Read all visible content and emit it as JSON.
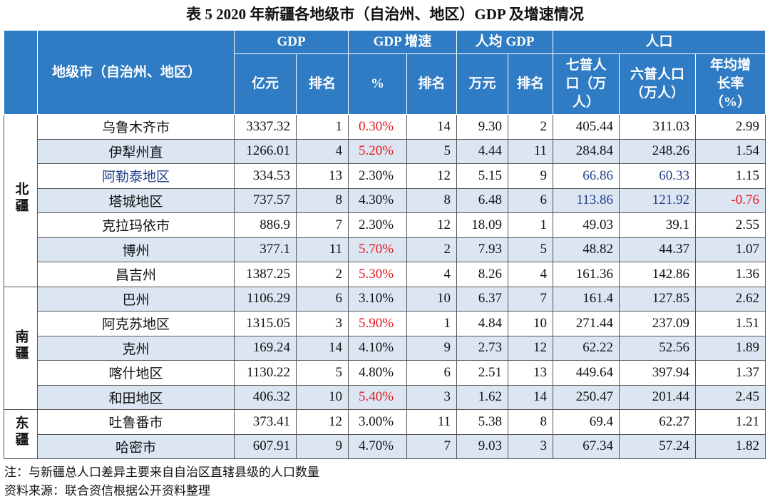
{
  "title": "表 5 2020 年新疆各地级市（自治州、地区）GDP 及增速情况",
  "header": {
    "name": "地级市（自治州、地区）",
    "groups": [
      "GDP",
      "GDP 增速",
      "人均 GDP",
      "人口"
    ],
    "units": [
      "亿元",
      "排名",
      "%",
      "排名",
      "万元",
      "排名",
      "七普人口（万人）",
      "六普人口（万人）",
      "年均增长率（%）"
    ]
  },
  "regions": [
    {
      "name": "北疆",
      "rows": [
        [
          "乌鲁木齐市",
          "3337.32",
          "1",
          {
            "text": "0.30%",
            "color": "#e8141b"
          },
          "14",
          "9.30",
          "2",
          "405.44",
          "311.03",
          "2.99"
        ],
        [
          "伊犁州直",
          "1266.01",
          "4",
          {
            "text": "5.20%",
            "color": "#e8141b"
          },
          "5",
          "4.44",
          "11",
          "284.84",
          "248.26",
          "1.54"
        ],
        [
          {
            "text": "阿勒泰地区",
            "color": "#1f3f8a"
          },
          "334.53",
          "13",
          "2.30%",
          "12",
          "5.15",
          "9",
          {
            "text": "66.86",
            "color": "#1f3f8a"
          },
          {
            "text": "60.33",
            "color": "#1f3f8a"
          },
          "1.15"
        ],
        [
          "塔城地区",
          "737.57",
          "8",
          "4.30%",
          "8",
          "6.48",
          "6",
          {
            "text": "113.86",
            "color": "#1f3f8a"
          },
          {
            "text": "121.92",
            "color": "#1f3f8a"
          },
          {
            "text": "-0.76",
            "color": "#e8141b"
          }
        ],
        [
          "克拉玛依市",
          "886.9",
          "7",
          "2.30%",
          "12",
          "18.09",
          "1",
          "49.03",
          "39.1",
          "2.55"
        ],
        [
          "博州",
          "377.1",
          "11",
          {
            "text": "5.70%",
            "color": "#e8141b"
          },
          "2",
          "7.93",
          "5",
          "48.82",
          "44.37",
          "1.07"
        ],
        [
          "昌吉州",
          "1387.25",
          "2",
          {
            "text": "5.30%",
            "color": "#e8141b"
          },
          "4",
          "8.26",
          "4",
          "161.36",
          "142.86",
          "1.36"
        ]
      ]
    },
    {
      "name": "南疆",
      "rows": [
        [
          "巴州",
          "1106.29",
          "6",
          "3.10%",
          "10",
          "6.37",
          "7",
          "161.4",
          "127.85",
          "2.62"
        ],
        [
          "阿克苏地区",
          "1315.05",
          "3",
          {
            "text": "5.90%",
            "color": "#e8141b"
          },
          "1",
          "4.84",
          "10",
          "271.44",
          "237.09",
          "1.51"
        ],
        [
          "克州",
          "169.24",
          "14",
          "4.10%",
          "9",
          "2.73",
          "12",
          "62.22",
          "52.56",
          "1.89"
        ],
        [
          "喀什地区",
          "1130.22",
          "5",
          "4.80%",
          "6",
          "2.51",
          "13",
          "449.64",
          "397.94",
          "1.37"
        ],
        [
          "和田地区",
          "406.32",
          "10",
          {
            "text": "5.40%",
            "color": "#e8141b"
          },
          "3",
          "1.62",
          "14",
          "250.47",
          "201.44",
          "2.45"
        ]
      ]
    },
    {
      "name": "东疆",
      "rows": [
        [
          "吐鲁番市",
          "373.41",
          "12",
          "3.00%",
          "11",
          "5.38",
          "8",
          "69.4",
          "62.27",
          "1.21"
        ],
        [
          "哈密市",
          "607.91",
          "9",
          "4.70%",
          "7",
          "9.03",
          "3",
          "67.34",
          "57.24",
          "1.82"
        ]
      ]
    }
  ],
  "notes": [
    "注：与新疆总人口差异主要来自自治区直辖县级的人口数量",
    "资料来源：联合资信根据公开资料整理"
  ]
}
